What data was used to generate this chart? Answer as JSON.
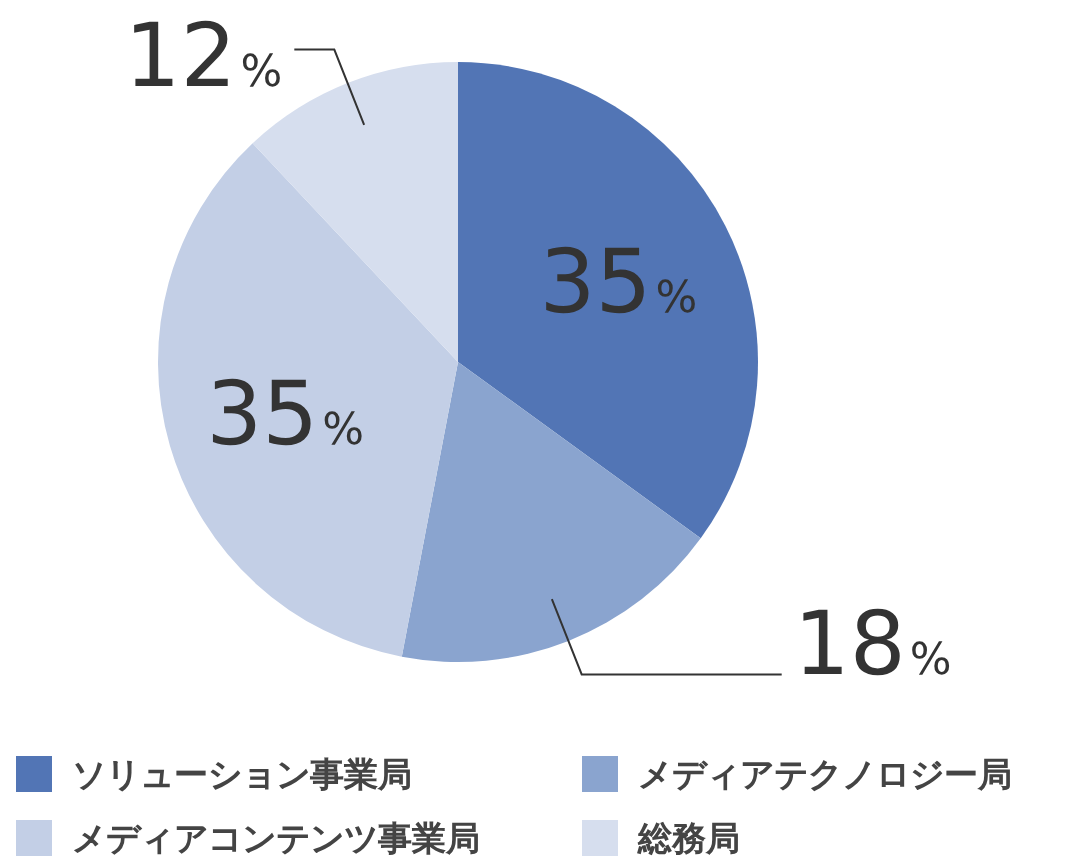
{
  "chart_data": {
    "type": "pie",
    "categories": [
      "ソリューション事業局",
      "メディアテクノロジー局",
      "メディアコンテンツ事業局",
      "総務局"
    ],
    "values": [
      35,
      18,
      35,
      12
    ],
    "colors": [
      "#5275b5",
      "#8aa4cf",
      "#c3cfe6",
      "#d6deee"
    ],
    "value_labels": [
      "35%",
      "18%",
      "35%",
      "12%"
    ],
    "legend": "bottom"
  }
}
